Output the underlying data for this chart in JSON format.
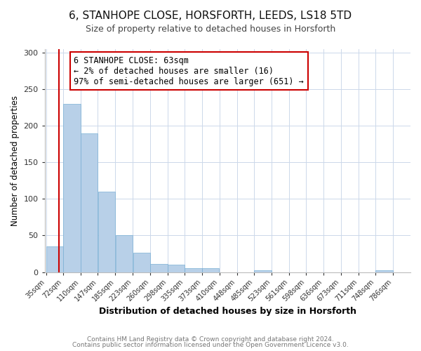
{
  "title1": "6, STANHOPE CLOSE, HORSFORTH, LEEDS, LS18 5TD",
  "title2": "Size of property relative to detached houses in Horsforth",
  "xlabel": "Distribution of detached houses by size in Horsforth",
  "ylabel": "Number of detached properties",
  "bin_edges": [
    35,
    72,
    110,
    147,
    185,
    223,
    260,
    298,
    335,
    373,
    410,
    448,
    485,
    523,
    561,
    598,
    636,
    673,
    711,
    748,
    786
  ],
  "bar_heights": [
    35,
    230,
    190,
    110,
    50,
    26,
    11,
    10,
    5,
    5,
    0,
    0,
    2,
    0,
    0,
    0,
    0,
    0,
    0,
    2,
    0
  ],
  "bar_color": "#b8d0e8",
  "bar_edge_color": "#7aafd4",
  "property_size": 63,
  "red_line_color": "#cc0000",
  "annotation_line1": "6 STANHOPE CLOSE: 63sqm",
  "annotation_line2": "← 2% of detached houses are smaller (16)",
  "annotation_line3": "97% of semi-detached houses are larger (651) →",
  "annotation_box_color": "#ffffff",
  "annotation_box_edge_color": "#cc0000",
  "ylim": [
    0,
    305
  ],
  "yticks": [
    0,
    50,
    100,
    150,
    200,
    250,
    300
  ],
  "footer1": "Contains HM Land Registry data © Crown copyright and database right 2024.",
  "footer2": "Contains public sector information licensed under the Open Government Licence v3.0.",
  "bg_color": "#ffffff",
  "grid_color": "#ccd8ea",
  "title1_fontsize": 11,
  "title2_fontsize": 9,
  "ylabel_fontsize": 8.5,
  "xlabel_fontsize": 9,
  "tick_fontsize": 7,
  "annotation_fontsize": 8.5,
  "footer_fontsize": 6.5
}
